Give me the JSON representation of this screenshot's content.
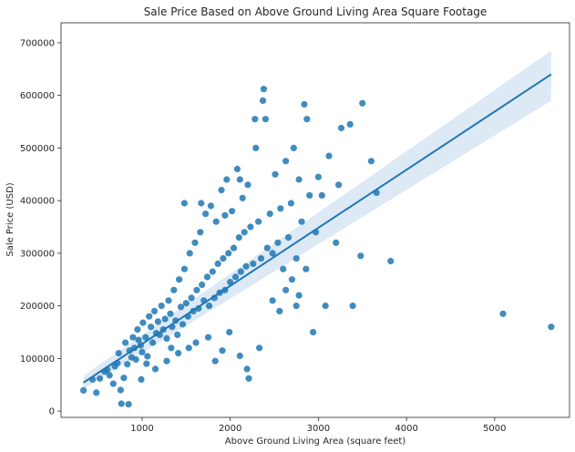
{
  "chart_data": {
    "type": "scatter",
    "title": "Sale Price Based on Above Ground Living Area Square Footage",
    "xlabel": "Above Ground Living Area (square feet)",
    "ylabel": "Sale Price (USD)",
    "xlim": [
      80,
      5850
    ],
    "ylim": [
      -12000,
      738000
    ],
    "xticks": [
      1000,
      2000,
      3000,
      4000,
      5000
    ],
    "yticks": [
      0,
      100000,
      200000,
      300000,
      400000,
      500000,
      600000,
      700000
    ],
    "grid": false,
    "point_color": "#1f77b4",
    "regression": {
      "x": [
        334,
        5642
      ],
      "y": [
        54000,
        640000
      ],
      "ci_lower": [
        42000,
        590000
      ],
      "ci_upper": [
        67000,
        685000
      ],
      "color": "#1f77b4",
      "band_color": "#c6dbef"
    },
    "points": [
      [
        334,
        39300
      ],
      [
        438,
        60000
      ],
      [
        480,
        35000
      ],
      [
        520,
        62000
      ],
      [
        572,
        75000
      ],
      [
        605,
        79000
      ],
      [
        630,
        68000
      ],
      [
        672,
        52000
      ],
      [
        690,
        85000
      ],
      [
        720,
        91000
      ],
      [
        734,
        110000
      ],
      [
        756,
        40000
      ],
      [
        765,
        14000
      ],
      [
        792,
        63000
      ],
      [
        810,
        130000
      ],
      [
        832,
        89000
      ],
      [
        846,
        13000
      ],
      [
        858,
        115000
      ],
      [
        880,
        102000
      ],
      [
        896,
        140000
      ],
      [
        912,
        120000
      ],
      [
        930,
        98000
      ],
      [
        948,
        155000
      ],
      [
        960,
        135000
      ],
      [
        984,
        125000
      ],
      [
        1000,
        112000
      ],
      [
        1010,
        168000
      ],
      [
        1040,
        140000
      ],
      [
        1060,
        104000
      ],
      [
        1080,
        180000
      ],
      [
        1100,
        160000
      ],
      [
        1120,
        130000
      ],
      [
        1140,
        190000
      ],
      [
        1160,
        148000
      ],
      [
        1180,
        170000
      ],
      [
        1200,
        145000
      ],
      [
        1220,
        200000
      ],
      [
        1240,
        155000
      ],
      [
        1260,
        175000
      ],
      [
        1280,
        138000
      ],
      [
        1300,
        210000
      ],
      [
        1320,
        185000
      ],
      [
        1340,
        160000
      ],
      [
        1360,
        230000
      ],
      [
        1380,
        172000
      ],
      [
        1400,
        145000
      ],
      [
        1420,
        250000
      ],
      [
        1440,
        198000
      ],
      [
        1460,
        165000
      ],
      [
        1480,
        270000
      ],
      [
        1500,
        205000
      ],
      [
        1520,
        180000
      ],
      [
        1540,
        300000
      ],
      [
        1560,
        215000
      ],
      [
        1580,
        190000
      ],
      [
        1600,
        320000
      ],
      [
        1620,
        230000
      ],
      [
        1640,
        195000
      ],
      [
        1660,
        340000
      ],
      [
        1680,
        240000
      ],
      [
        1700,
        210000
      ],
      [
        1720,
        375000
      ],
      [
        1740,
        255000
      ],
      [
        1760,
        200000
      ],
      [
        1780,
        390000
      ],
      [
        1800,
        265000
      ],
      [
        1820,
        215000
      ],
      [
        1840,
        360000
      ],
      [
        1860,
        280000
      ],
      [
        1880,
        225000
      ],
      [
        1900,
        420000
      ],
      [
        1920,
        290000
      ],
      [
        1940,
        230000
      ],
      [
        1960,
        440000
      ],
      [
        1980,
        300000
      ],
      [
        2000,
        245000
      ],
      [
        2020,
        380000
      ],
      [
        2040,
        310000
      ],
      [
        2060,
        255000
      ],
      [
        2080,
        460000
      ],
      [
        2100,
        330000
      ],
      [
        2120,
        265000
      ],
      [
        2140,
        405000
      ],
      [
        2160,
        340000
      ],
      [
        2180,
        275000
      ],
      [
        2200,
        430000
      ],
      [
        2230,
        350000
      ],
      [
        2260,
        280000
      ],
      [
        2290,
        500000
      ],
      [
        2320,
        360000
      ],
      [
        2350,
        290000
      ],
      [
        2380,
        612000
      ],
      [
        2400,
        555000
      ],
      [
        2420,
        310000
      ],
      [
        2450,
        375000
      ],
      [
        2480,
        300000
      ],
      [
        2510,
        450000
      ],
      [
        2540,
        320000
      ],
      [
        2570,
        385000
      ],
      [
        2600,
        270000
      ],
      [
        2630,
        475000
      ],
      [
        2660,
        330000
      ],
      [
        2690,
        395000
      ],
      [
        2720,
        500000
      ],
      [
        2750,
        290000
      ],
      [
        2780,
        440000
      ],
      [
        2810,
        360000
      ],
      [
        2840,
        583000
      ],
      [
        2870,
        555000
      ],
      [
        2900,
        410000
      ],
      [
        2940,
        150000
      ],
      [
        2970,
        340000
      ],
      [
        3000,
        445000
      ],
      [
        3040,
        410000
      ],
      [
        3080,
        200000
      ],
      [
        3120,
        485000
      ],
      [
        3200,
        320000
      ],
      [
        3230,
        430000
      ],
      [
        3260,
        538000
      ],
      [
        3360,
        545000
      ],
      [
        3390,
        200000
      ],
      [
        3480,
        295000
      ],
      [
        3500,
        585000
      ],
      [
        3600,
        475000
      ],
      [
        3660,
        415000
      ],
      [
        3820,
        285000
      ],
      [
        5095,
        185000
      ],
      [
        5642,
        160000
      ],
      [
        2370,
        590000
      ],
      [
        2280,
        555000
      ],
      [
        2110,
        440000
      ],
      [
        1940,
        372000
      ],
      [
        1670,
        395000
      ],
      [
        1480,
        395000
      ],
      [
        1280,
        95000
      ],
      [
        1150,
        80000
      ],
      [
        1050,
        90000
      ],
      [
        990,
        60000
      ],
      [
        1330,
        120000
      ],
      [
        1410,
        110000
      ],
      [
        1530,
        120000
      ],
      [
        1610,
        130000
      ],
      [
        1750,
        140000
      ],
      [
        1830,
        95000
      ],
      [
        1910,
        115000
      ],
      [
        1990,
        150000
      ],
      [
        2110,
        105000
      ],
      [
        2190,
        80000
      ],
      [
        2210,
        62000
      ],
      [
        2330,
        120000
      ],
      [
        2560,
        190000
      ],
      [
        2480,
        210000
      ],
      [
        2630,
        230000
      ],
      [
        2700,
        250000
      ],
      [
        2860,
        270000
      ],
      [
        2780,
        220000
      ],
      [
        2750,
        200000
      ]
    ]
  }
}
